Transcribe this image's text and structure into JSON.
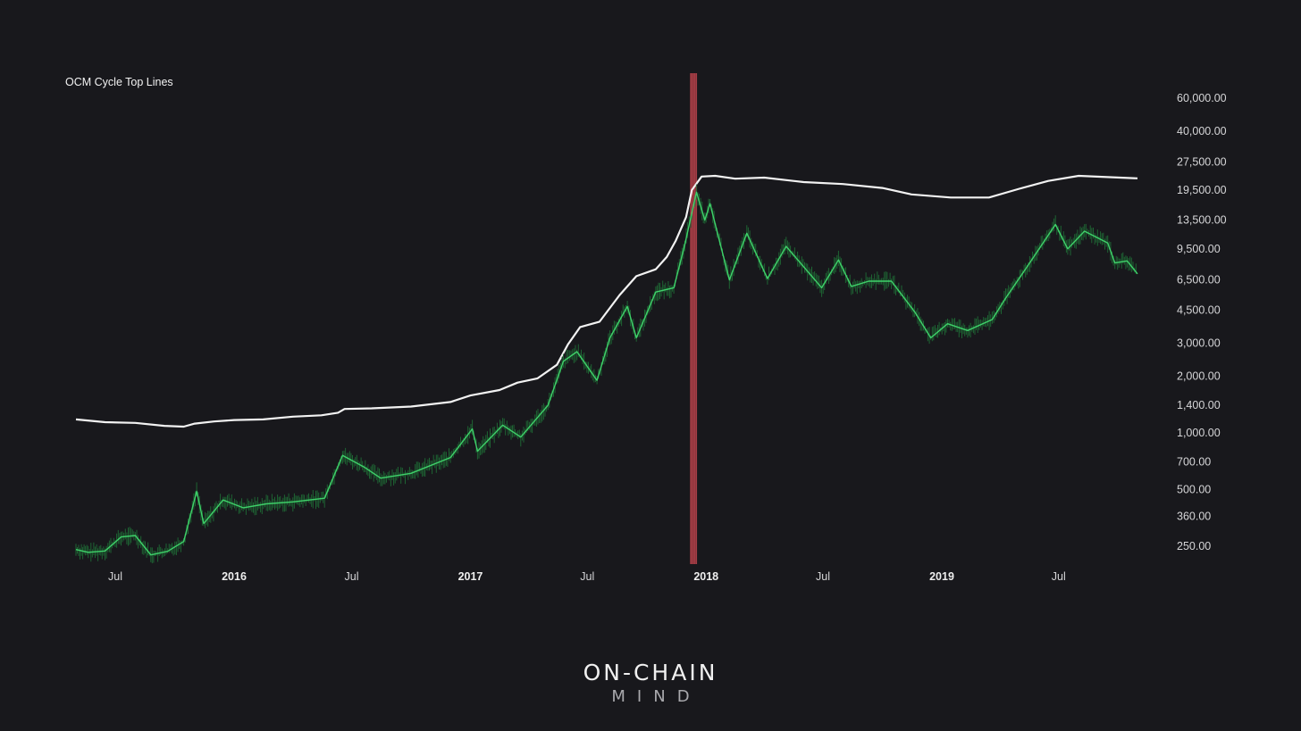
{
  "title": "OCM Cycle Top Lines",
  "logo": {
    "line1": "ON-CHAIN",
    "line2": "MIND"
  },
  "colors": {
    "background": "#18181c",
    "top_line": "#f2f2f2",
    "price": "#3fd16a",
    "band": "#b0343c"
  },
  "chart_data": {
    "type": "line",
    "y_scale": "log",
    "ylim": [
      210,
      75000
    ],
    "x_range": [
      "2015-05-01",
      "2019-10-31"
    ],
    "grid": false,
    "legend": "none",
    "y_ticks": [
      {
        "value": 60000,
        "label": "60,000.00"
      },
      {
        "value": 40000,
        "label": "40,000.00"
      },
      {
        "value": 27500,
        "label": "27,500.00"
      },
      {
        "value": 19500,
        "label": "19,500.00"
      },
      {
        "value": 13500,
        "label": "13,500.00"
      },
      {
        "value": 9500,
        "label": "9,500.00"
      },
      {
        "value": 6500,
        "label": "6,500.00"
      },
      {
        "value": 4500,
        "label": "4,500.00"
      },
      {
        "value": 3000,
        "label": "3,000.00"
      },
      {
        "value": 2000,
        "label": "2,000.00"
      },
      {
        "value": 1400,
        "label": "1,400.00"
      },
      {
        "value": 1000,
        "label": "1,000.00"
      },
      {
        "value": 700,
        "label": "700.00"
      },
      {
        "value": 500,
        "label": "500.00"
      },
      {
        "value": 360,
        "label": "360.00"
      },
      {
        "value": 250,
        "label": "250.00"
      }
    ],
    "x_ticks": [
      {
        "date": "2015-07-01",
        "label": "Jul",
        "year": false
      },
      {
        "date": "2016-01-01",
        "label": "2016",
        "year": true
      },
      {
        "date": "2016-07-01",
        "label": "Jul",
        "year": false
      },
      {
        "date": "2017-01-01",
        "label": "2017",
        "year": true
      },
      {
        "date": "2017-07-01",
        "label": "Jul",
        "year": false
      },
      {
        "date": "2018-01-01",
        "label": "2018",
        "year": true
      },
      {
        "date": "2018-07-01",
        "label": "Jul",
        "year": false
      },
      {
        "date": "2019-01-01",
        "label": "2019",
        "year": true
      },
      {
        "date": "2019-07-01",
        "label": "Jul",
        "year": false
      }
    ],
    "highlight_band": {
      "from": "2017-12-07",
      "to": "2017-12-18"
    },
    "series": [
      {
        "key": "top_line",
        "points": [
          [
            "2015-05-01",
            1180
          ],
          [
            "2015-06-15",
            1140
          ],
          [
            "2015-08-01",
            1130
          ],
          [
            "2015-09-15",
            1090
          ],
          [
            "2015-10-15",
            1080
          ],
          [
            "2015-11-01",
            1120
          ],
          [
            "2015-12-01",
            1150
          ],
          [
            "2016-01-01",
            1170
          ],
          [
            "2016-02-15",
            1180
          ],
          [
            "2016-04-01",
            1220
          ],
          [
            "2016-05-15",
            1240
          ],
          [
            "2016-06-10",
            1280
          ],
          [
            "2016-06-20",
            1340
          ],
          [
            "2016-08-01",
            1350
          ],
          [
            "2016-10-01",
            1380
          ],
          [
            "2016-12-01",
            1460
          ],
          [
            "2017-01-01",
            1580
          ],
          [
            "2017-02-15",
            1690
          ],
          [
            "2017-03-15",
            1850
          ],
          [
            "2017-04-15",
            1950
          ],
          [
            "2017-05-15",
            2300
          ],
          [
            "2017-06-01",
            2950
          ],
          [
            "2017-06-20",
            3650
          ],
          [
            "2017-07-20",
            3900
          ],
          [
            "2017-08-20",
            5400
          ],
          [
            "2017-09-15",
            6800
          ],
          [
            "2017-10-15",
            7400
          ],
          [
            "2017-11-01",
            8600
          ],
          [
            "2017-11-15",
            10500
          ],
          [
            "2017-12-01",
            14000
          ],
          [
            "2017-12-10",
            19500
          ],
          [
            "2017-12-25",
            23000
          ],
          [
            "2018-01-15",
            23200
          ],
          [
            "2018-02-15",
            22400
          ],
          [
            "2018-04-01",
            22700
          ],
          [
            "2018-06-01",
            21500
          ],
          [
            "2018-08-01",
            21000
          ],
          [
            "2018-10-01",
            20000
          ],
          [
            "2018-11-15",
            18500
          ],
          [
            "2019-01-15",
            17800
          ],
          [
            "2019-03-15",
            17800
          ],
          [
            "2019-05-01",
            19800
          ],
          [
            "2019-06-15",
            21800
          ],
          [
            "2019-08-01",
            23200
          ],
          [
            "2019-10-31",
            22500
          ]
        ]
      },
      {
        "key": "price",
        "points": [
          [
            "2015-05-01",
            240
          ],
          [
            "2015-05-20",
            232
          ],
          [
            "2015-06-15",
            236
          ],
          [
            "2015-07-10",
            280
          ],
          [
            "2015-08-01",
            285
          ],
          [
            "2015-08-25",
            225
          ],
          [
            "2015-09-20",
            235
          ],
          [
            "2015-10-15",
            265
          ],
          [
            "2015-11-04",
            490
          ],
          [
            "2015-11-15",
            330
          ],
          [
            "2015-12-15",
            440
          ],
          [
            "2016-01-15",
            400
          ],
          [
            "2016-02-20",
            420
          ],
          [
            "2016-04-01",
            430
          ],
          [
            "2016-05-20",
            450
          ],
          [
            "2016-06-17",
            760
          ],
          [
            "2016-07-20",
            660
          ],
          [
            "2016-08-15",
            575
          ],
          [
            "2016-10-01",
            610
          ],
          [
            "2016-12-01",
            740
          ],
          [
            "2017-01-04",
            1050
          ],
          [
            "2017-01-12",
            800
          ],
          [
            "2017-02-20",
            1100
          ],
          [
            "2017-03-20",
            950
          ],
          [
            "2017-05-01",
            1400
          ],
          [
            "2017-05-25",
            2400
          ],
          [
            "2017-06-15",
            2700
          ],
          [
            "2017-07-16",
            1900
          ],
          [
            "2017-08-05",
            3200
          ],
          [
            "2017-09-01",
            4700
          ],
          [
            "2017-09-15",
            3200
          ],
          [
            "2017-10-15",
            5600
          ],
          [
            "2017-11-12",
            5900
          ],
          [
            "2017-11-29",
            10000
          ],
          [
            "2017-12-17",
            19000
          ],
          [
            "2017-12-30",
            13500
          ],
          [
            "2018-01-07",
            16500
          ],
          [
            "2018-02-06",
            6500
          ],
          [
            "2018-03-05",
            11500
          ],
          [
            "2018-04-06",
            6600
          ],
          [
            "2018-05-05",
            9800
          ],
          [
            "2018-06-29",
            5900
          ],
          [
            "2018-07-25",
            8300
          ],
          [
            "2018-08-14",
            6000
          ],
          [
            "2018-09-10",
            6400
          ],
          [
            "2018-10-15",
            6400
          ],
          [
            "2018-11-20",
            4400
          ],
          [
            "2018-12-15",
            3200
          ],
          [
            "2019-01-10",
            3800
          ],
          [
            "2019-02-10",
            3500
          ],
          [
            "2019-03-20",
            4000
          ],
          [
            "2019-04-10",
            5200
          ],
          [
            "2019-05-15",
            7800
          ],
          [
            "2019-06-26",
            12800
          ],
          [
            "2019-07-15",
            9500
          ],
          [
            "2019-08-10",
            11800
          ],
          [
            "2019-09-15",
            10200
          ],
          [
            "2019-09-26",
            8000
          ],
          [
            "2019-10-15",
            8200
          ],
          [
            "2019-10-31",
            7000
          ]
        ]
      }
    ]
  }
}
